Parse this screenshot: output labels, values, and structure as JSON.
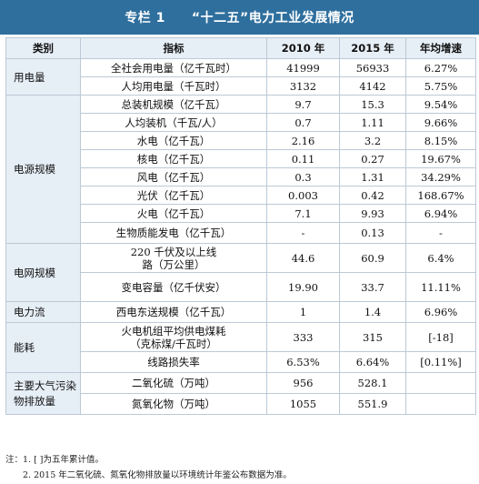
{
  "title": "专栏 1　　“十二五”电力工业发展情况",
  "headers": [
    "类别",
    "指标",
    "2010 年",
    "2015 年",
    "年均增速"
  ],
  "categories": {
    "usage": "用电量",
    "power": "电源规模",
    "grid": "电网规模",
    "flow": "电力流",
    "energy": "能耗",
    "emission": "主要大气污染物排放量"
  },
  "rows": [
    {
      "ind": "全社会用电量（亿千瓦时）",
      "v2010": "41999",
      "v2015": "56933",
      "growth": "6.27%"
    },
    {
      "ind": "人均用电量（千瓦时）",
      "v2010": "3132",
      "v2015": "4142",
      "growth": "5.75%"
    },
    {
      "ind": "总装机规模（亿千瓦）",
      "v2010": "9.7",
      "v2015": "15.3",
      "growth": "9.54%"
    },
    {
      "ind": "人均装机（千瓦/人）",
      "v2010": "0.7",
      "v2015": "1.11",
      "growth": "9.66%"
    },
    {
      "ind": "水电（亿千瓦）",
      "v2010": "2.16",
      "v2015": "3.2",
      "growth": "8.15%"
    },
    {
      "ind": "核电（亿千瓦）",
      "v2010": "0.11",
      "v2015": "0.27",
      "growth": "19.67%"
    },
    {
      "ind": "风电（亿千瓦）",
      "v2010": "0.3",
      "v2015": "1.31",
      "growth": "34.29%"
    },
    {
      "ind": "光伏（亿千瓦）",
      "v2010": "0.003",
      "v2015": "0.42",
      "growth": "168.67%"
    },
    {
      "ind": "火电（亿千瓦）",
      "v2010": "7.1",
      "v2015": "9.93",
      "growth": "6.94%"
    },
    {
      "ind": "生物质能发电（亿千瓦）",
      "v2010": "-",
      "v2015": "0.13",
      "growth": "-"
    },
    {
      "ind": "220 千伏及以上线路（万公里）",
      "v2010": "44.6",
      "v2015": "60.9",
      "growth": "6.4%"
    },
    {
      "ind": "变电容量（亿千伏安）",
      "v2010": "19.90",
      "v2015": "33.7",
      "growth": "11.11%"
    },
    {
      "ind": "西电东送规模（亿千瓦）",
      "v2010": "1",
      "v2015": "1.4",
      "growth": "6.96%"
    },
    {
      "ind": "火电机组平均供电煤耗（克标煤/千瓦时）",
      "v2010": "333",
      "v2015": "315",
      "growth": "[-18]"
    },
    {
      "ind": "线路损失率",
      "v2010": "6.53%",
      "v2015": "6.64%",
      "growth": "[0.11%]"
    },
    {
      "ind": "二氧化硫（万吨）",
      "v2010": "956",
      "v2015": "528.1",
      "growth": ""
    },
    {
      "ind": "氮氧化物（万吨）",
      "v2010": "1055",
      "v2015": "551.9",
      "growth": ""
    }
  ],
  "notes": [
    "注：1. [ ]为五年累计值。",
    "　　2. 2015 年二氧化硫、氮氧化物排放量以环境统计年鉴公布数据为准。"
  ],
  "colors": {
    "title_bg": "#2f6f9e",
    "header_bg": "#e6eef6",
    "border": "#bcc9d6"
  }
}
